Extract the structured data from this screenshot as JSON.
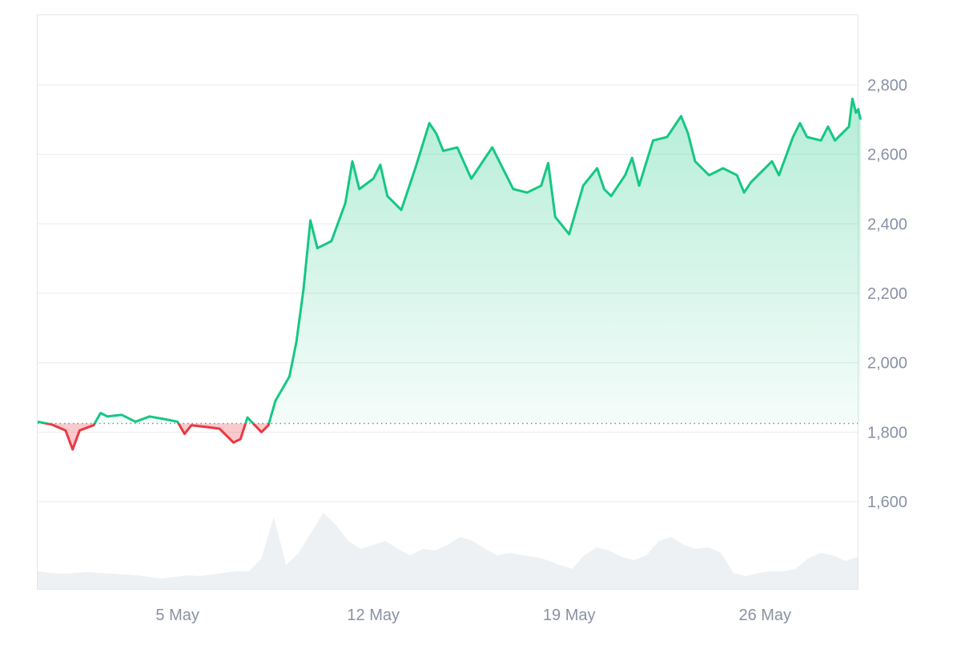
{
  "chart_data": {
    "type": "area",
    "title": "",
    "xlabel": "",
    "ylabel": "",
    "baseline": 1825,
    "ylim": [
      1380,
      2990
    ],
    "y_ticks": [
      1600,
      1800,
      2000,
      2200,
      2400,
      2600,
      2800
    ],
    "y_tick_labels": [
      "1,600",
      "1,800",
      "2,000",
      "2,200",
      "2,400",
      "2,600",
      "2,800"
    ],
    "xlim": [
      "2024-04-30",
      "2024-05-30"
    ],
    "x_ticks": [
      "2024-05-05",
      "2024-05-12",
      "2024-05-19",
      "2024-05-26"
    ],
    "x_tick_labels": [
      "5 May",
      "12 May",
      "19 May",
      "26 May"
    ],
    "grid": "horizontal",
    "colors": {
      "up": "#16c784",
      "down": "#ea3943",
      "volume": "#eef1f4",
      "grid": "#e8ebef",
      "baseline": "#858ca2",
      "axis_text": "#8a91a5"
    },
    "series": [
      {
        "values": [
          [
            "2024-04-30",
            1830
          ],
          [
            "2024-04-30T12:00",
            1822
          ],
          [
            "2024-05-01",
            1805
          ],
          [
            "2024-05-01T06:00",
            1750
          ],
          [
            "2024-05-01T12:00",
            1805
          ],
          [
            "2024-05-02",
            1820
          ],
          [
            "2024-05-02T06:00",
            1855
          ],
          [
            "2024-05-02T12:00",
            1845
          ],
          [
            "2024-05-03",
            1850
          ],
          [
            "2024-05-03T12:00",
            1830
          ],
          [
            "2024-05-04",
            1845
          ],
          [
            "2024-05-04T12:00",
            1838
          ],
          [
            "2024-05-05",
            1830
          ],
          [
            "2024-05-05T06:00",
            1795
          ],
          [
            "2024-05-05T12:00",
            1820
          ],
          [
            "2024-05-06",
            1815
          ],
          [
            "2024-05-06T12:00",
            1810
          ],
          [
            "2024-05-07",
            1770
          ],
          [
            "2024-05-07T06:00",
            1780
          ],
          [
            "2024-05-07T12:00",
            1842
          ],
          [
            "2024-05-08",
            1800
          ],
          [
            "2024-05-08T06:00",
            1820
          ],
          [
            "2024-05-08T12:00",
            1890
          ],
          [
            "2024-05-09",
            1960
          ],
          [
            "2024-05-09T06:00",
            2060
          ],
          [
            "2024-05-09T12:00",
            2210
          ],
          [
            "2024-05-09T18:00",
            2410
          ],
          [
            "2024-05-10",
            2330
          ],
          [
            "2024-05-10T12:00",
            2350
          ],
          [
            "2024-05-11",
            2460
          ],
          [
            "2024-05-11T06:00",
            2580
          ],
          [
            "2024-05-11T12:00",
            2500
          ],
          [
            "2024-05-12",
            2530
          ],
          [
            "2024-05-12T06:00",
            2570
          ],
          [
            "2024-05-12T12:00",
            2480
          ],
          [
            "2024-05-13",
            2440
          ],
          [
            "2024-05-13T12:00",
            2560
          ],
          [
            "2024-05-14",
            2690
          ],
          [
            "2024-05-14T06:00",
            2660
          ],
          [
            "2024-05-14T12:00",
            2610
          ],
          [
            "2024-05-15",
            2620
          ],
          [
            "2024-05-15T12:00",
            2530
          ],
          [
            "2024-05-16",
            2590
          ],
          [
            "2024-05-16T06:00",
            2620
          ],
          [
            "2024-05-16T12:00",
            2580
          ],
          [
            "2024-05-17",
            2500
          ],
          [
            "2024-05-17T12:00",
            2490
          ],
          [
            "2024-05-18",
            2510
          ],
          [
            "2024-05-18T06:00",
            2575
          ],
          [
            "2024-05-18T12:00",
            2420
          ],
          [
            "2024-05-19",
            2370
          ],
          [
            "2024-05-19T06:00",
            2440
          ],
          [
            "2024-05-19T12:00",
            2510
          ],
          [
            "2024-05-20",
            2560
          ],
          [
            "2024-05-20T06:00",
            2500
          ],
          [
            "2024-05-20T12:00",
            2480
          ],
          [
            "2024-05-21",
            2540
          ],
          [
            "2024-05-21T06:00",
            2590
          ],
          [
            "2024-05-21T12:00",
            2510
          ],
          [
            "2024-05-22",
            2640
          ],
          [
            "2024-05-22T12:00",
            2650
          ],
          [
            "2024-05-23",
            2710
          ],
          [
            "2024-05-23T06:00",
            2660
          ],
          [
            "2024-05-23T12:00",
            2580
          ],
          [
            "2024-05-24",
            2540
          ],
          [
            "2024-05-24T12:00",
            2560
          ],
          [
            "2024-05-25",
            2540
          ],
          [
            "2024-05-25T06:00",
            2490
          ],
          [
            "2024-05-25T12:00",
            2520
          ],
          [
            "2024-05-26",
            2560
          ],
          [
            "2024-05-26T06:00",
            2580
          ],
          [
            "2024-05-26T12:00",
            2540
          ],
          [
            "2024-05-27",
            2650
          ],
          [
            "2024-05-27T06:00",
            2690
          ],
          [
            "2024-05-27T12:00",
            2650
          ],
          [
            "2024-05-28",
            2640
          ],
          [
            "2024-05-28T06:00",
            2680
          ],
          [
            "2024-05-28T12:00",
            2640
          ],
          [
            "2024-05-29",
            2680
          ],
          [
            "2024-05-29T03:00",
            2760
          ],
          [
            "2024-05-29T06:00",
            2720
          ],
          [
            "2024-05-29T08:00",
            2730
          ],
          [
            "2024-05-29T10:00",
            2700
          ]
        ]
      }
    ],
    "volume_relative": [
      0.22,
      0.2,
      0.19,
      0.2,
      0.21,
      0.2,
      0.19,
      0.18,
      0.17,
      0.15,
      0.13,
      0.15,
      0.17,
      0.16,
      0.18,
      0.2,
      0.22,
      0.22,
      0.38,
      0.9,
      0.3,
      0.45,
      0.7,
      0.95,
      0.8,
      0.6,
      0.5,
      0.55,
      0.6,
      0.5,
      0.42,
      0.5,
      0.48,
      0.55,
      0.65,
      0.6,
      0.5,
      0.42,
      0.45,
      0.42,
      0.4,
      0.36,
      0.3,
      0.25,
      0.42,
      0.52,
      0.48,
      0.4,
      0.36,
      0.42,
      0.6,
      0.65,
      0.55,
      0.5,
      0.52,
      0.45,
      0.2,
      0.16,
      0.2,
      0.22,
      0.22,
      0.25,
      0.38,
      0.45,
      0.42,
      0.35,
      0.4
    ]
  }
}
